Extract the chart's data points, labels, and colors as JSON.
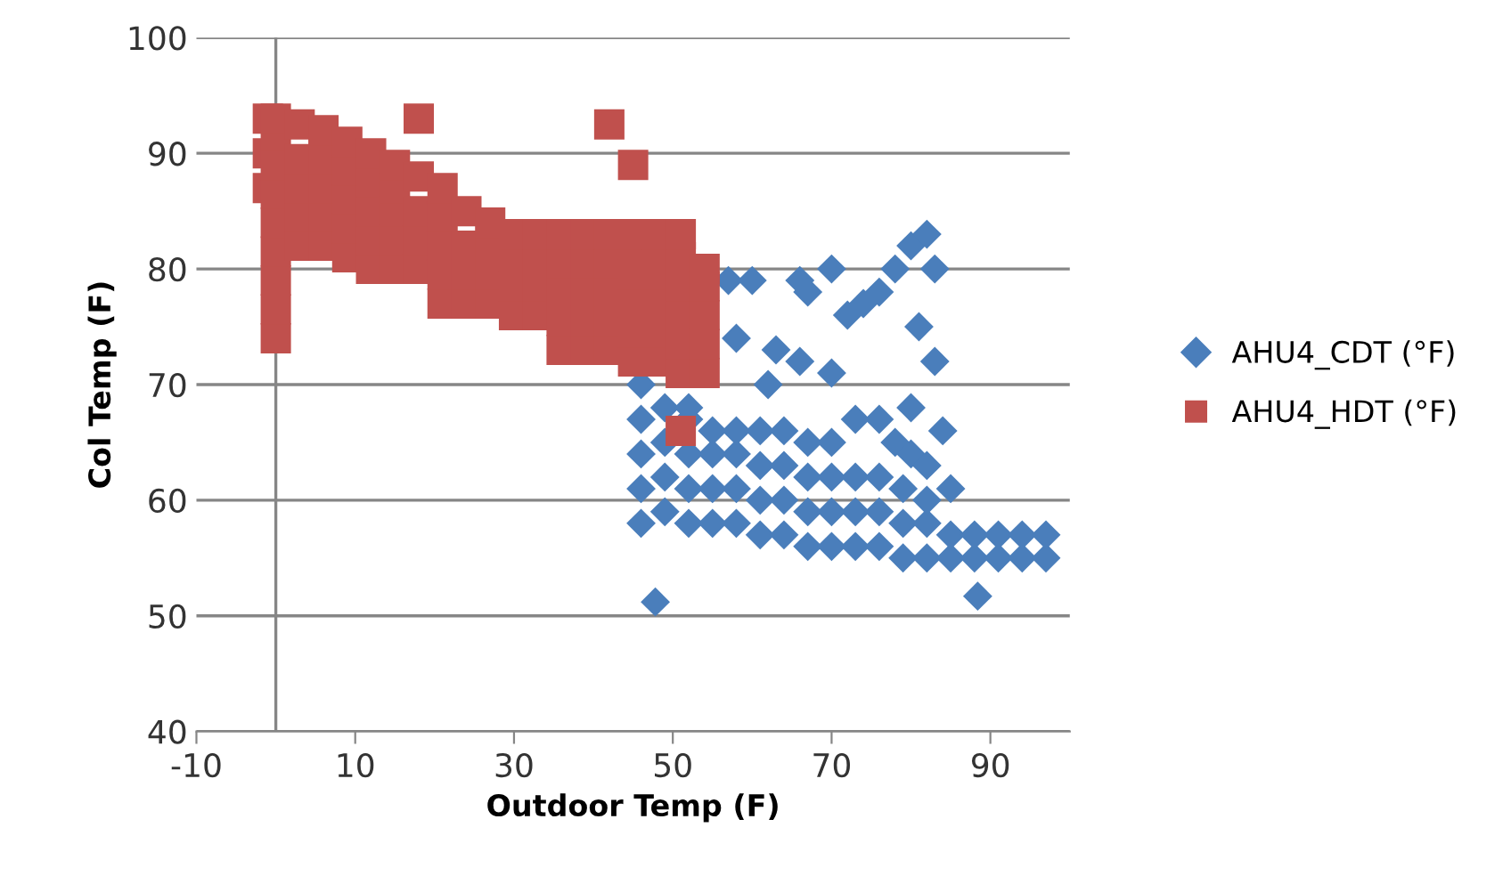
{
  "chart_data": {
    "type": "scatter",
    "xlabel": "Outdoor Temp (F)",
    "ylabel": "Col Temp (F)",
    "xlim": [
      -10,
      100
    ],
    "xticks": [
      -10,
      10,
      30,
      50,
      70,
      90
    ],
    "ylim": [
      40,
      100
    ],
    "yticks": [
      40,
      50,
      60,
      70,
      80,
      90,
      100
    ],
    "grid": "y",
    "legend": "right",
    "ref_lines": [
      {
        "axis": "x",
        "value": 0,
        "color": "#868686"
      }
    ],
    "series": [
      {
        "name": "AHU4_CDT (°F)",
        "color": "#4a7ebb",
        "marker": "diamond",
        "x": [
          46,
          46,
          46,
          46,
          46,
          47.8,
          49,
          49,
          49,
          49,
          52,
          52,
          52,
          52,
          55,
          55,
          55,
          55,
          58,
          58,
          58,
          58,
          61,
          61,
          61,
          61,
          64,
          64,
          64,
          64,
          67,
          67,
          67,
          67,
          70,
          70,
          70,
          70,
          73,
          73,
          73,
          76,
          76,
          76,
          79,
          79,
          79,
          82,
          82,
          82,
          85,
          85,
          88,
          88,
          91,
          91,
          94,
          94,
          97,
          97,
          88.4,
          57,
          60,
          63,
          66,
          67,
          70,
          72,
          74,
          76,
          78,
          80,
          82,
          83,
          81,
          83,
          80,
          84,
          62,
          66,
          70,
          73,
          76,
          78,
          80,
          82,
          85,
          58,
          52
        ],
        "values": [
          58,
          61,
          64,
          67,
          70,
          51.2,
          59,
          62,
          65,
          68,
          58,
          61,
          64,
          67,
          58,
          61,
          64,
          66,
          58,
          61,
          64,
          66,
          57,
          60,
          63,
          66,
          57,
          60,
          63,
          66,
          56,
          59,
          62,
          65,
          56,
          59,
          62,
          65,
          56,
          59,
          62,
          56,
          59,
          62,
          55,
          58,
          61,
          55,
          58,
          60,
          55,
          57,
          55,
          57,
          55,
          57,
          55,
          57,
          55,
          57,
          51.7,
          79,
          79,
          73,
          79,
          78,
          80,
          76,
          77,
          78,
          80,
          82,
          83,
          80,
          75,
          72,
          68,
          66,
          70,
          72,
          71,
          67,
          67,
          65,
          64,
          63,
          61,
          74,
          68
        ]
      },
      {
        "name": "AHU4_HDT (°F)",
        "color": "#c0504d",
        "marker": "square",
        "x": [
          -1,
          -1,
          -1,
          0,
          0,
          0,
          0,
          0,
          0,
          0,
          0,
          0,
          3,
          3,
          3,
          3,
          3,
          6,
          6,
          6,
          6,
          6,
          9,
          9,
          9,
          9,
          9,
          12,
          12,
          12,
          12,
          12,
          15,
          15,
          15,
          15,
          15,
          18,
          18,
          18,
          18,
          18,
          21,
          21,
          21,
          21,
          21,
          24,
          24,
          24,
          24,
          27,
          27,
          27,
          27,
          30,
          30,
          30,
          30,
          33,
          33,
          33,
          33,
          36,
          36,
          36,
          36,
          36,
          39,
          39,
          39,
          39,
          39,
          42,
          42,
          42,
          42,
          42,
          42,
          45,
          45,
          45,
          45,
          45,
          45,
          45,
          48,
          48,
          48,
          48,
          48,
          48,
          51,
          51,
          51,
          51,
          51,
          51,
          51,
          54,
          54,
          54,
          54,
          54
        ],
        "values": [
          87,
          90,
          93,
          74,
          76.5,
          79,
          81.5,
          84,
          86.5,
          89,
          91.5,
          93,
          82,
          84.5,
          87,
          89.5,
          92.5,
          82,
          84.5,
          87,
          89.5,
          92,
          81,
          83.5,
          86,
          88.5,
          91,
          80,
          82.5,
          85,
          87.5,
          90,
          80,
          82.5,
          85,
          87,
          89,
          80,
          82.5,
          85,
          88,
          93,
          77,
          79.5,
          82,
          84.5,
          87,
          77,
          79.5,
          82,
          85,
          77,
          79.5,
          82,
          84,
          76,
          78.5,
          81,
          83,
          76,
          78.5,
          81,
          83,
          73,
          75.5,
          78,
          80.5,
          83,
          73,
          75.5,
          78,
          80.5,
          83,
          73,
          75.5,
          78,
          80.5,
          83,
          92.5,
          72,
          74.5,
          77,
          79.5,
          82,
          83,
          89,
          72,
          74.5,
          77,
          79.5,
          82,
          83,
          71,
          73.5,
          76,
          78.5,
          81,
          83,
          66,
          71,
          73.5,
          76,
          78.5,
          80
        ]
      }
    ]
  }
}
